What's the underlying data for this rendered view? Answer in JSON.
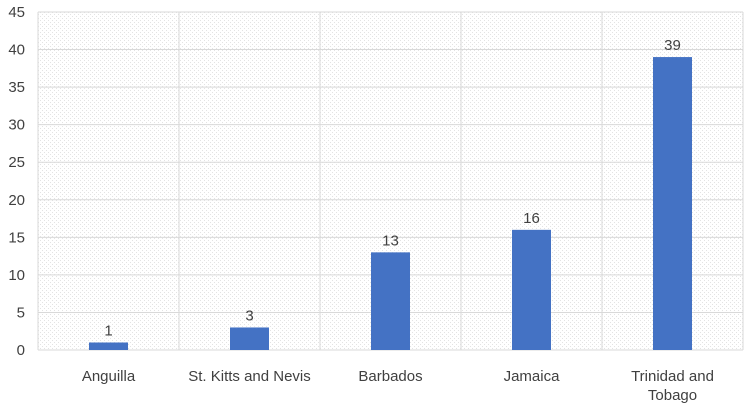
{
  "chart_data": {
    "type": "bar",
    "categories": [
      "Anguilla",
      "St. Kitts and Nevis",
      "Barbados",
      "Jamaica",
      "Trinidad and Tobago"
    ],
    "category_label_lines": [
      [
        "Anguilla"
      ],
      [
        "St. Kitts and Nevis"
      ],
      [
        "Barbados"
      ],
      [
        "Jamaica"
      ],
      [
        "Trinidad and",
        "Tobago"
      ]
    ],
    "values": [
      1,
      3,
      13,
      16,
      39
    ],
    "data_labels": [
      "1",
      "3",
      "13",
      "16",
      "39"
    ],
    "ylim": [
      0,
      45
    ],
    "yticks": [
      0,
      5,
      10,
      15,
      20,
      25,
      30,
      35,
      40,
      45
    ],
    "ytick_labels": [
      "0",
      "5",
      "10",
      "15",
      "20",
      "25",
      "30",
      "35",
      "40",
      "45"
    ],
    "title": "",
    "xlabel": "",
    "ylabel": "",
    "grid": true,
    "legend": "none",
    "bar_color": "#4472C4",
    "plot_background": "#f2f2f2",
    "grid_color": "#d9d9d9"
  }
}
